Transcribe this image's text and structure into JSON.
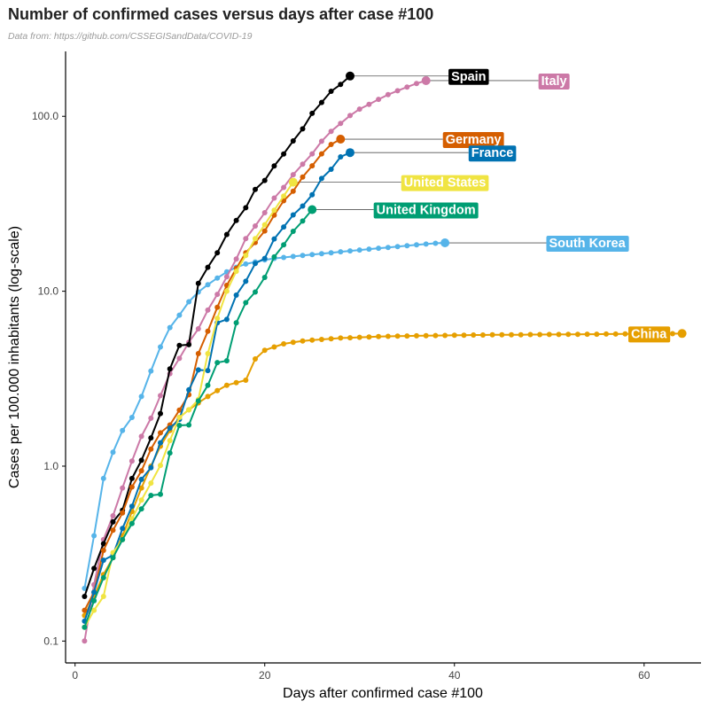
{
  "chart_data": {
    "type": "line",
    "title": "Number of confirmed cases versus days after case #100",
    "subtitle": "Data from: https://github.com/CSSEGISandData/COVID-19",
    "xlabel": "Days after confirmed case #100",
    "ylabel": "Cases per 100.000 inhabitants (log-scale)",
    "x_scale": "linear",
    "y_scale": "log10",
    "xlim": [
      -1,
      66
    ],
    "ylim": [
      0.075,
      235
    ],
    "x_ticks": [
      0,
      20,
      40,
      60
    ],
    "x_tick_labels": [
      "0",
      "20",
      "40",
      "60"
    ],
    "y_ticks": [
      0.1,
      1,
      10,
      100
    ],
    "y_tick_labels": [
      "0.1",
      "1.0",
      "10.0",
      "100.0"
    ],
    "grid": false,
    "legend": "direct labels at line ends",
    "series": [
      {
        "name": "China",
        "color": "#E69F00",
        "label_x": 60.5,
        "values": [
          0.14,
          0.18,
          0.24,
          0.3,
          0.4,
          0.55,
          0.75,
          1.0,
          1.3,
          1.6,
          1.9,
          2.1,
          2.3,
          2.5,
          2.7,
          2.9,
          3.0,
          3.1,
          4.1,
          4.6,
          4.8,
          5.0,
          5.1,
          5.2,
          5.25,
          5.3,
          5.35,
          5.4,
          5.42,
          5.45,
          5.47,
          5.5,
          5.52,
          5.54,
          5.55,
          5.56,
          5.57,
          5.58,
          5.59,
          5.6,
          5.61,
          5.62,
          5.62,
          5.63,
          5.63,
          5.64,
          5.64,
          5.65,
          5.65,
          5.66,
          5.66,
          5.67,
          5.67,
          5.68,
          5.68,
          5.69,
          5.69,
          5.7,
          5.7,
          5.71,
          5.71,
          5.72,
          5.72,
          5.73
        ]
      },
      {
        "name": "South Korea",
        "color": "#56B4E9",
        "label_x": 54,
        "values": [
          0.2,
          0.4,
          0.85,
          1.2,
          1.6,
          1.9,
          2.5,
          3.5,
          4.8,
          6.2,
          7.3,
          8.7,
          9.9,
          10.9,
          11.9,
          12.9,
          13.7,
          14.3,
          14.7,
          15.1,
          15.4,
          15.6,
          15.8,
          16.0,
          16.2,
          16.4,
          16.6,
          16.8,
          17.0,
          17.2,
          17.4,
          17.6,
          17.8,
          18.0,
          18.2,
          18.4,
          18.6,
          18.8,
          18.9
        ]
      },
      {
        "name": "Italy",
        "color": "#CC79A7",
        "label_x": 50.5,
        "values": [
          0.1,
          0.21,
          0.38,
          0.52,
          0.75,
          1.07,
          1.48,
          1.88,
          2.53,
          3.38,
          4.13,
          5.1,
          6.1,
          7.8,
          9.6,
          12.1,
          15.3,
          20.0,
          23.6,
          28.1,
          34.1,
          39.2,
          46.4,
          53.2,
          61.0,
          72.0,
          82.0,
          91.0,
          101.0,
          110.0,
          117.0,
          125.0,
          133.0,
          140.0,
          147.0,
          154.0,
          160.0
        ]
      },
      {
        "name": "Spain",
        "color": "#000000",
        "label_x": 41.5,
        "values": [
          0.18,
          0.26,
          0.36,
          0.48,
          0.56,
          0.85,
          1.08,
          1.45,
          2.0,
          3.6,
          4.9,
          4.95,
          11.1,
          13.7,
          16.6,
          21.1,
          25.4,
          30.0,
          38.2,
          43.0,
          52.0,
          60.9,
          72.3,
          84.8,
          104.0,
          120.0,
          139.0,
          152.0,
          170.0
        ]
      },
      {
        "name": "Germany",
        "color": "#D55E00",
        "label_x": 42,
        "values": [
          0.15,
          0.19,
          0.33,
          0.43,
          0.54,
          0.76,
          0.94,
          1.25,
          1.55,
          1.72,
          2.09,
          2.56,
          4.4,
          5.9,
          8.1,
          10.8,
          13.5,
          16.6,
          19.0,
          22.1,
          27.2,
          32.9,
          37.3,
          45.0,
          52.1,
          61.0,
          69.0,
          74.0
        ]
      },
      {
        "name": "France",
        "color": "#0072B2",
        "label_x": 44,
        "values": [
          0.13,
          0.19,
          0.29,
          0.31,
          0.44,
          0.59,
          0.84,
          0.98,
          1.36,
          1.65,
          1.85,
          2.73,
          3.55,
          3.52,
          6.6,
          6.9,
          9.5,
          11.4,
          14.4,
          15.4,
          19.9,
          23.3,
          27.3,
          30.7,
          35.6,
          44.1,
          49.8,
          58.6,
          62.0
        ]
      },
      {
        "name": "United States",
        "color": "#F0E442",
        "label_x": 39,
        "values": [
          0.12,
          0.15,
          0.18,
          0.32,
          0.38,
          0.5,
          0.64,
          0.8,
          1.01,
          1.4,
          1.9,
          2.1,
          2.4,
          4.4,
          7.0,
          10.0,
          13.0,
          16.0,
          20.0,
          24.0,
          29.0,
          35.0,
          42.0
        ]
      },
      {
        "name": "United Kingdom",
        "color": "#009E73",
        "label_x": 37,
        "values": [
          0.12,
          0.17,
          0.23,
          0.3,
          0.38,
          0.47,
          0.57,
          0.68,
          0.69,
          1.19,
          1.71,
          1.72,
          2.36,
          2.9,
          3.91,
          4.0,
          6.6,
          8.6,
          9.9,
          12.0,
          15.7,
          18.4,
          22.0,
          25.2,
          29.3
        ]
      }
    ]
  }
}
